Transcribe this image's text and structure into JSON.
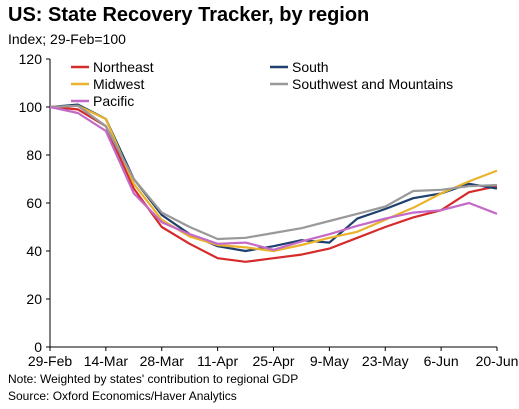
{
  "header": {
    "title": "US: State Recovery Tracker, by region",
    "subtitle": "Index; 29-Feb=100"
  },
  "footer": {
    "note": "Note: Weighted by states' contribution to regional GDP",
    "source": "Source: Oxford Economics/Haver Analytics"
  },
  "chart_data": {
    "type": "line",
    "title": "US: State Recovery Tracker, by region",
    "subtitle": "Index; 29-Feb=100",
    "xlabel": "",
    "ylabel": "",
    "x_ticks": [
      "29-Feb",
      "14-Mar",
      "28-Mar",
      "11-Apr",
      "25-Apr",
      "9-May",
      "23-May",
      "6-Jun",
      "20-Jun"
    ],
    "y_ticks": [
      0,
      20,
      40,
      60,
      80,
      100,
      120
    ],
    "ylim": [
      0,
      120
    ],
    "grid": false,
    "legend_position": "top",
    "x": [
      "29-Feb",
      "7-Mar",
      "14-Mar",
      "21-Mar",
      "28-Mar",
      "4-Apr",
      "11-Apr",
      "18-Apr",
      "25-Apr",
      "2-May",
      "9-May",
      "16-May",
      "23-May",
      "30-May",
      "6-Jun",
      "13-Jun",
      "20-Jun"
    ],
    "series": [
      {
        "name": "Northeast",
        "color": "#d52b2b",
        "values": [
          100,
          99,
          92,
          66,
          50,
          43,
          37,
          35.5,
          37,
          38.5,
          41,
          45.5,
          50,
          54,
          57,
          64.5,
          67
        ]
      },
      {
        "name": "South",
        "color": "#1f3f6e",
        "values": [
          100,
          101,
          95,
          70,
          55,
          47,
          42,
          40,
          42,
          44.5,
          43.5,
          53.5,
          57.5,
          62,
          64,
          68,
          66
        ]
      },
      {
        "name": "Midwest",
        "color": "#e9b32b",
        "values": [
          100,
          100.5,
          95,
          68,
          53,
          46,
          42.5,
          41.5,
          40,
          42.5,
          45.5,
          48,
          53,
          58,
          64,
          69,
          73.5
        ]
      },
      {
        "name": "Southwest and Mountains",
        "color": "#999999",
        "values": [
          100,
          100.5,
          92,
          70,
          56,
          50,
          45,
          45.5,
          47.5,
          49.5,
          52.5,
          55.5,
          58.5,
          65,
          65.5,
          67,
          67.5
        ]
      },
      {
        "name": "Pacific",
        "color": "#c36ac8",
        "values": [
          100,
          97.5,
          90,
          64,
          52,
          47,
          43,
          43.5,
          40.5,
          44,
          47,
          50.5,
          53.5,
          56,
          57,
          60,
          55.5
        ]
      }
    ]
  }
}
